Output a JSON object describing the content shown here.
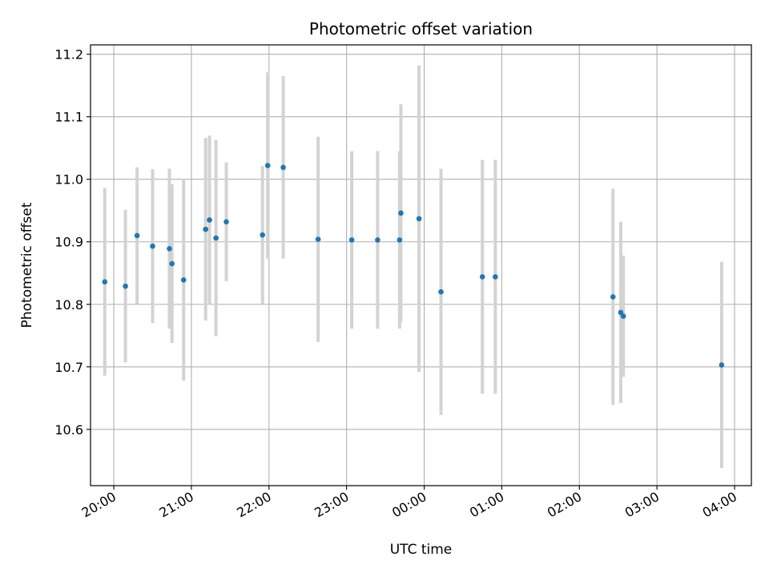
{
  "chart_data": {
    "type": "scatter",
    "title": "Photometric offset variation",
    "xlabel": "UTC time",
    "ylabel": "Photometric offset",
    "grid": true,
    "x_unit": "UTC HH:MM",
    "xlim": [
      "19:42",
      "04:13"
    ],
    "ylim": [
      10.51,
      11.215
    ],
    "x_ticks": [
      "20:00",
      "21:00",
      "22:00",
      "23:00",
      "00:00",
      "01:00",
      "02:00",
      "03:00",
      "04:00"
    ],
    "y_ticks": [
      "10.6",
      "10.7",
      "10.8",
      "10.9",
      "11.0",
      "11.1",
      "11.2"
    ],
    "colors": {
      "points": "#1f77b4",
      "errorbars": "#d3d3d3",
      "grid": "#b0b0b0"
    },
    "points": [
      {
        "time": "19:53",
        "y": 10.836,
        "err": 0.15
      },
      {
        "time": "20:09",
        "y": 10.829,
        "err": 0.122
      },
      {
        "time": "20:18",
        "y": 10.91,
        "err": 0.109
      },
      {
        "time": "20:30",
        "y": 10.893,
        "err": 0.123
      },
      {
        "time": "20:43",
        "y": 10.889,
        "err": 0.128
      },
      {
        "time": "20:45",
        "y": 10.865,
        "err": 0.127
      },
      {
        "time": "20:54",
        "y": 10.839,
        "err": 0.161
      },
      {
        "time": "21:11",
        "y": 10.92,
        "err": 0.146
      },
      {
        "time": "21:14",
        "y": 10.935,
        "err": 0.135
      },
      {
        "time": "21:19",
        "y": 10.906,
        "err": 0.157
      },
      {
        "time": "21:27",
        "y": 10.932,
        "err": 0.095
      },
      {
        "time": "21:55",
        "y": 10.911,
        "err": 0.11
      },
      {
        "time": "21:59",
        "y": 11.022,
        "err": 0.149
      },
      {
        "time": "22:11",
        "y": 11.019,
        "err": 0.146
      },
      {
        "time": "22:38",
        "y": 10.904,
        "err": 0.164
      },
      {
        "time": "23:04",
        "y": 10.903,
        "err": 0.142
      },
      {
        "time": "23:24",
        "y": 10.903,
        "err": 0.142
      },
      {
        "time": "23:41",
        "y": 10.903,
        "err": 0.142
      },
      {
        "time": "23:42",
        "y": 10.946,
        "err": 0.174
      },
      {
        "time": "23:56",
        "y": 10.937,
        "err": 0.245
      },
      {
        "time": "00:13",
        "y": 10.82,
        "err": 0.197
      },
      {
        "time": "00:45",
        "y": 10.844,
        "err": 0.187
      },
      {
        "time": "00:55",
        "y": 10.844,
        "err": 0.187
      },
      {
        "time": "02:26",
        "y": 10.812,
        "err": 0.173
      },
      {
        "time": "02:32",
        "y": 10.787,
        "err": 0.145
      },
      {
        "time": "02:34",
        "y": 10.781,
        "err": 0.097
      },
      {
        "time": "03:50",
        "y": 10.703,
        "err": 0.165
      }
    ]
  }
}
